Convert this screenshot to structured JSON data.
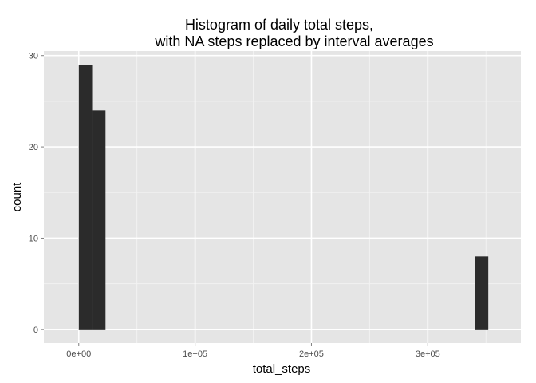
{
  "chart_data": {
    "type": "bar",
    "title_lines": [
      "Histogram of daily total steps,",
      "with NA steps replaced by interval averages"
    ],
    "xlabel": "total_steps",
    "ylabel": "count",
    "xlim": [
      -30000,
      380000
    ],
    "ylim": [
      -1.5,
      30.5
    ],
    "x_ticks": [
      {
        "value": 0,
        "label": "0e+00"
      },
      {
        "value": 100000,
        "label": "1e+05"
      },
      {
        "value": 200000,
        "label": "2e+05"
      },
      {
        "value": 300000,
        "label": "3e+05"
      }
    ],
    "x_minor_ticks": [
      50000,
      150000,
      250000,
      350000
    ],
    "y_ticks": [
      {
        "value": 0,
        "label": "0"
      },
      {
        "value": 10,
        "label": "10"
      },
      {
        "value": 20,
        "label": "20"
      },
      {
        "value": 30,
        "label": "30"
      }
    ],
    "y_minor_ticks": [
      5,
      15,
      25
    ],
    "bins": [
      {
        "x0": 0,
        "x1": 11500,
        "count": 29
      },
      {
        "x0": 11500,
        "x1": 23000,
        "count": 24
      },
      {
        "x0": 340500,
        "x1": 352000,
        "count": 8
      }
    ],
    "grid": true,
    "colors": {
      "panel": "#e5e5e5",
      "grid_major": "#ffffff",
      "grid_minor": "#f2f2f2",
      "bar": "#2b2b2b"
    }
  }
}
